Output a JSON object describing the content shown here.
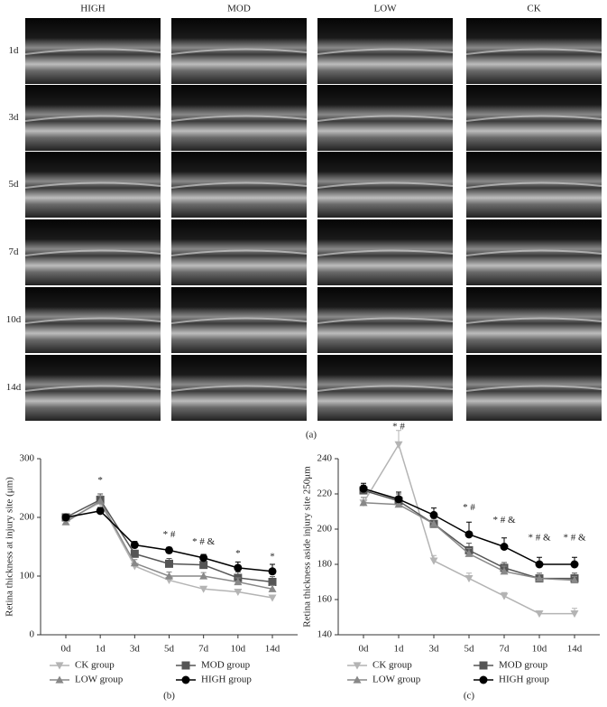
{
  "figure": {
    "columns": [
      "HIGH",
      "MOD",
      "LOW",
      "CK"
    ],
    "rows": [
      "1d",
      "3d",
      "5d",
      "7d",
      "10d",
      "14d"
    ],
    "caption": "(a)"
  },
  "chart_data": [
    {
      "type": "line",
      "caption": "(b)",
      "y_label": "Retina thickness at injury site (μm)",
      "categories": [
        "0d",
        "1d",
        "3d",
        "5d",
        "7d",
        "10d",
        "14d"
      ],
      "ylim": [
        0,
        300
      ],
      "yticks": [
        0,
        100,
        200,
        300
      ],
      "series": [
        {
          "name": "CK group",
          "color": "#b4b4b4",
          "marker": "triangle-down",
          "values": [
            195,
            225,
            117,
            93,
            78,
            73,
            63
          ],
          "errors": [
            4,
            8,
            5,
            5,
            3,
            4,
            4
          ]
        },
        {
          "name": "MOD group",
          "color": "#555555",
          "marker": "square",
          "values": [
            200,
            230,
            138,
            121,
            119,
            97,
            90
          ],
          "errors": [
            4,
            10,
            6,
            9,
            8,
            10,
            9
          ]
        },
        {
          "name": "LOW group",
          "color": "#888888",
          "marker": "triangle-up",
          "values": [
            192,
            228,
            122,
            100,
            100,
            90,
            78
          ],
          "errors": [
            4,
            9,
            6,
            7,
            6,
            7,
            6
          ]
        },
        {
          "name": "HIGH group",
          "color": "#000000",
          "marker": "circle",
          "values": [
            200,
            211,
            153,
            144,
            131,
            114,
            108
          ],
          "errors": [
            4,
            6,
            6,
            5,
            6,
            10,
            12
          ]
        }
      ],
      "annotations": [
        {
          "x": "1d",
          "y": 262,
          "text": "*"
        },
        {
          "x": "5d",
          "y": 170,
          "text": "* #"
        },
        {
          "x": "7d",
          "y": 158,
          "text": "* # &"
        },
        {
          "x": "10d",
          "y": 138,
          "text": "*"
        },
        {
          "x": "14d",
          "y": 132,
          "text": "*"
        }
      ]
    },
    {
      "type": "line",
      "caption": "(c)",
      "y_label": "Retina thickness aside injury site 250μm",
      "categories": [
        "0d",
        "1d",
        "3d",
        "5d",
        "7d",
        "10d",
        "14d"
      ],
      "ylim": [
        140,
        240
      ],
      "yticks": [
        140,
        160,
        180,
        200,
        220,
        240
      ],
      "series": [
        {
          "name": "CK group",
          "color": "#b4b4b4",
          "marker": "triangle-down",
          "values": [
            215,
            248,
            182,
            172,
            162,
            152,
            152
          ],
          "errors": [
            3,
            8,
            3,
            3,
            2,
            1,
            3
          ]
        },
        {
          "name": "MOD group",
          "color": "#555555",
          "marker": "square",
          "values": [
            222,
            216,
            203,
            188,
            178,
            172,
            172
          ],
          "errors": [
            3,
            4,
            4,
            4,
            3,
            3,
            3
          ]
        },
        {
          "name": "LOW group",
          "color": "#888888",
          "marker": "triangle-up",
          "values": [
            215,
            214,
            203,
            186,
            176,
            172,
            171
          ],
          "errors": [
            3,
            3,
            3,
            3,
            3,
            3,
            2
          ]
        },
        {
          "name": "HIGH group",
          "color": "#000000",
          "marker": "circle",
          "values": [
            223,
            217,
            208,
            197,
            190,
            180,
            180
          ],
          "errors": [
            3,
            4,
            4,
            7,
            5,
            4,
            4
          ]
        }
      ],
      "annotations": [
        {
          "x": "1d",
          "y": 258,
          "text": "* #"
        },
        {
          "x": "5d",
          "y": 212,
          "text": "* #"
        },
        {
          "x": "7d",
          "y": 205,
          "text": "* # &"
        },
        {
          "x": "10d",
          "y": 195,
          "text": "* # &"
        },
        {
          "x": "14d",
          "y": 195,
          "text": "* # &"
        }
      ]
    }
  ]
}
